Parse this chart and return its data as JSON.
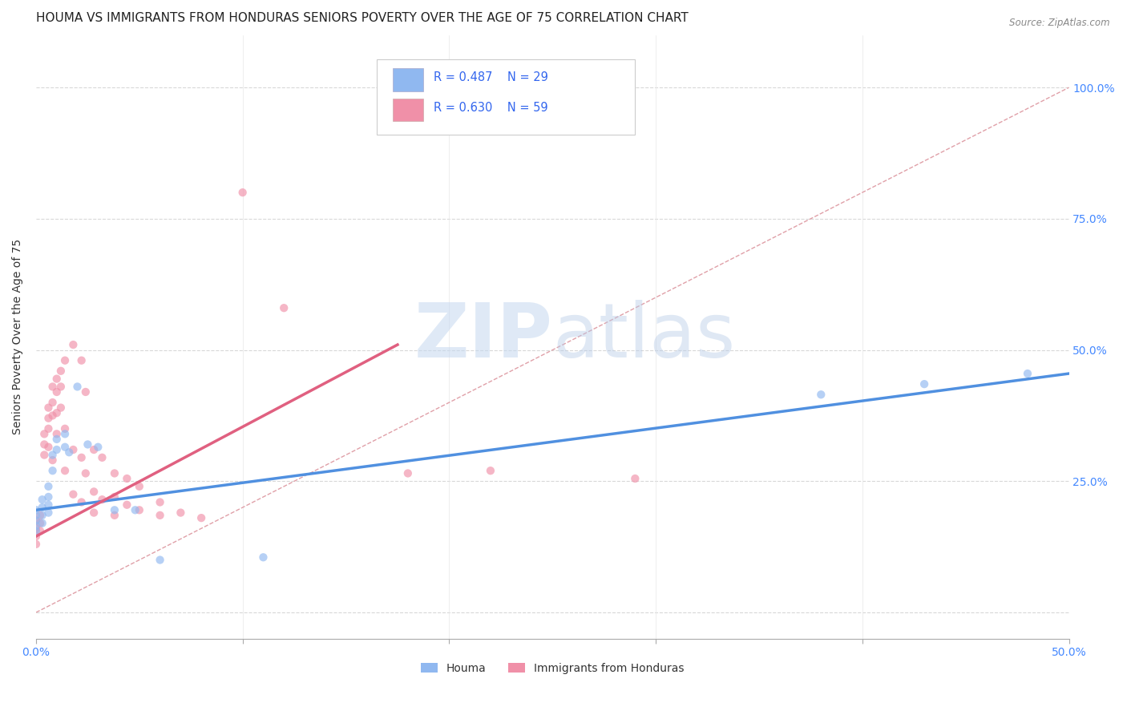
{
  "title": "HOUMA VS IMMIGRANTS FROM HONDURAS SENIORS POVERTY OVER THE AGE OF 75 CORRELATION CHART",
  "source": "Source: ZipAtlas.com",
  "ylabel": "Seniors Poverty Over the Age of 75",
  "right_yticks": [
    "100.0%",
    "75.0%",
    "50.0%",
    "25.0%",
    ""
  ],
  "right_ytick_vals": [
    1.0,
    0.75,
    0.5,
    0.25,
    0.0
  ],
  "xlim": [
    0.0,
    0.5
  ],
  "ylim": [
    -0.05,
    1.1
  ],
  "houma_color": "#90b8f0",
  "honduras_color": "#f090a8",
  "houma_scatter": [
    [
      0.0,
      0.195
    ],
    [
      0.0,
      0.185
    ],
    [
      0.0,
      0.175
    ],
    [
      0.0,
      0.165
    ],
    [
      0.0,
      0.155
    ],
    [
      0.003,
      0.2
    ],
    [
      0.003,
      0.185
    ],
    [
      0.003,
      0.17
    ],
    [
      0.003,
      0.215
    ],
    [
      0.006,
      0.22
    ],
    [
      0.006,
      0.205
    ],
    [
      0.006,
      0.19
    ],
    [
      0.006,
      0.24
    ],
    [
      0.008,
      0.3
    ],
    [
      0.008,
      0.27
    ],
    [
      0.01,
      0.33
    ],
    [
      0.01,
      0.31
    ],
    [
      0.014,
      0.34
    ],
    [
      0.014,
      0.315
    ],
    [
      0.016,
      0.305
    ],
    [
      0.02,
      0.43
    ],
    [
      0.025,
      0.32
    ],
    [
      0.03,
      0.315
    ],
    [
      0.038,
      0.195
    ],
    [
      0.048,
      0.195
    ],
    [
      0.06,
      0.1
    ],
    [
      0.11,
      0.105
    ],
    [
      0.38,
      0.415
    ],
    [
      0.43,
      0.435
    ],
    [
      0.48,
      0.455
    ]
  ],
  "honduras_scatter": [
    [
      0.0,
      0.175
    ],
    [
      0.0,
      0.16
    ],
    [
      0.0,
      0.145
    ],
    [
      0.0,
      0.13
    ],
    [
      0.002,
      0.185
    ],
    [
      0.002,
      0.17
    ],
    [
      0.002,
      0.155
    ],
    [
      0.004,
      0.34
    ],
    [
      0.004,
      0.32
    ],
    [
      0.004,
      0.3
    ],
    [
      0.006,
      0.39
    ],
    [
      0.006,
      0.37
    ],
    [
      0.006,
      0.35
    ],
    [
      0.006,
      0.315
    ],
    [
      0.008,
      0.43
    ],
    [
      0.008,
      0.4
    ],
    [
      0.008,
      0.375
    ],
    [
      0.008,
      0.29
    ],
    [
      0.01,
      0.445
    ],
    [
      0.01,
      0.42
    ],
    [
      0.01,
      0.38
    ],
    [
      0.01,
      0.34
    ],
    [
      0.012,
      0.46
    ],
    [
      0.012,
      0.43
    ],
    [
      0.012,
      0.39
    ],
    [
      0.014,
      0.48
    ],
    [
      0.014,
      0.35
    ],
    [
      0.014,
      0.27
    ],
    [
      0.018,
      0.51
    ],
    [
      0.018,
      0.31
    ],
    [
      0.018,
      0.225
    ],
    [
      0.022,
      0.48
    ],
    [
      0.022,
      0.295
    ],
    [
      0.022,
      0.21
    ],
    [
      0.024,
      0.42
    ],
    [
      0.024,
      0.265
    ],
    [
      0.028,
      0.31
    ],
    [
      0.028,
      0.23
    ],
    [
      0.028,
      0.19
    ],
    [
      0.032,
      0.295
    ],
    [
      0.032,
      0.215
    ],
    [
      0.038,
      0.265
    ],
    [
      0.038,
      0.22
    ],
    [
      0.038,
      0.185
    ],
    [
      0.044,
      0.255
    ],
    [
      0.044,
      0.205
    ],
    [
      0.05,
      0.24
    ],
    [
      0.05,
      0.195
    ],
    [
      0.06,
      0.21
    ],
    [
      0.06,
      0.185
    ],
    [
      0.07,
      0.19
    ],
    [
      0.08,
      0.18
    ],
    [
      0.1,
      0.8
    ],
    [
      0.12,
      0.58
    ],
    [
      0.18,
      0.265
    ],
    [
      0.22,
      0.27
    ],
    [
      0.29,
      0.255
    ]
  ],
  "houma_line": [
    [
      0.0,
      0.195
    ],
    [
      0.5,
      0.455
    ]
  ],
  "honduras_line": [
    [
      0.0,
      0.145
    ],
    [
      0.175,
      0.51
    ]
  ],
  "diagonal_line_color": "#e0a0a8",
  "diagonal_line_style": "--",
  "background_color": "#ffffff",
  "grid_color": "#d8d8d8",
  "watermark_zip": "ZIP",
  "watermark_atlas": "atlas",
  "title_fontsize": 11,
  "axis_label_fontsize": 10,
  "tick_fontsize": 9,
  "dot_size": 55,
  "dot_alpha": 0.65
}
